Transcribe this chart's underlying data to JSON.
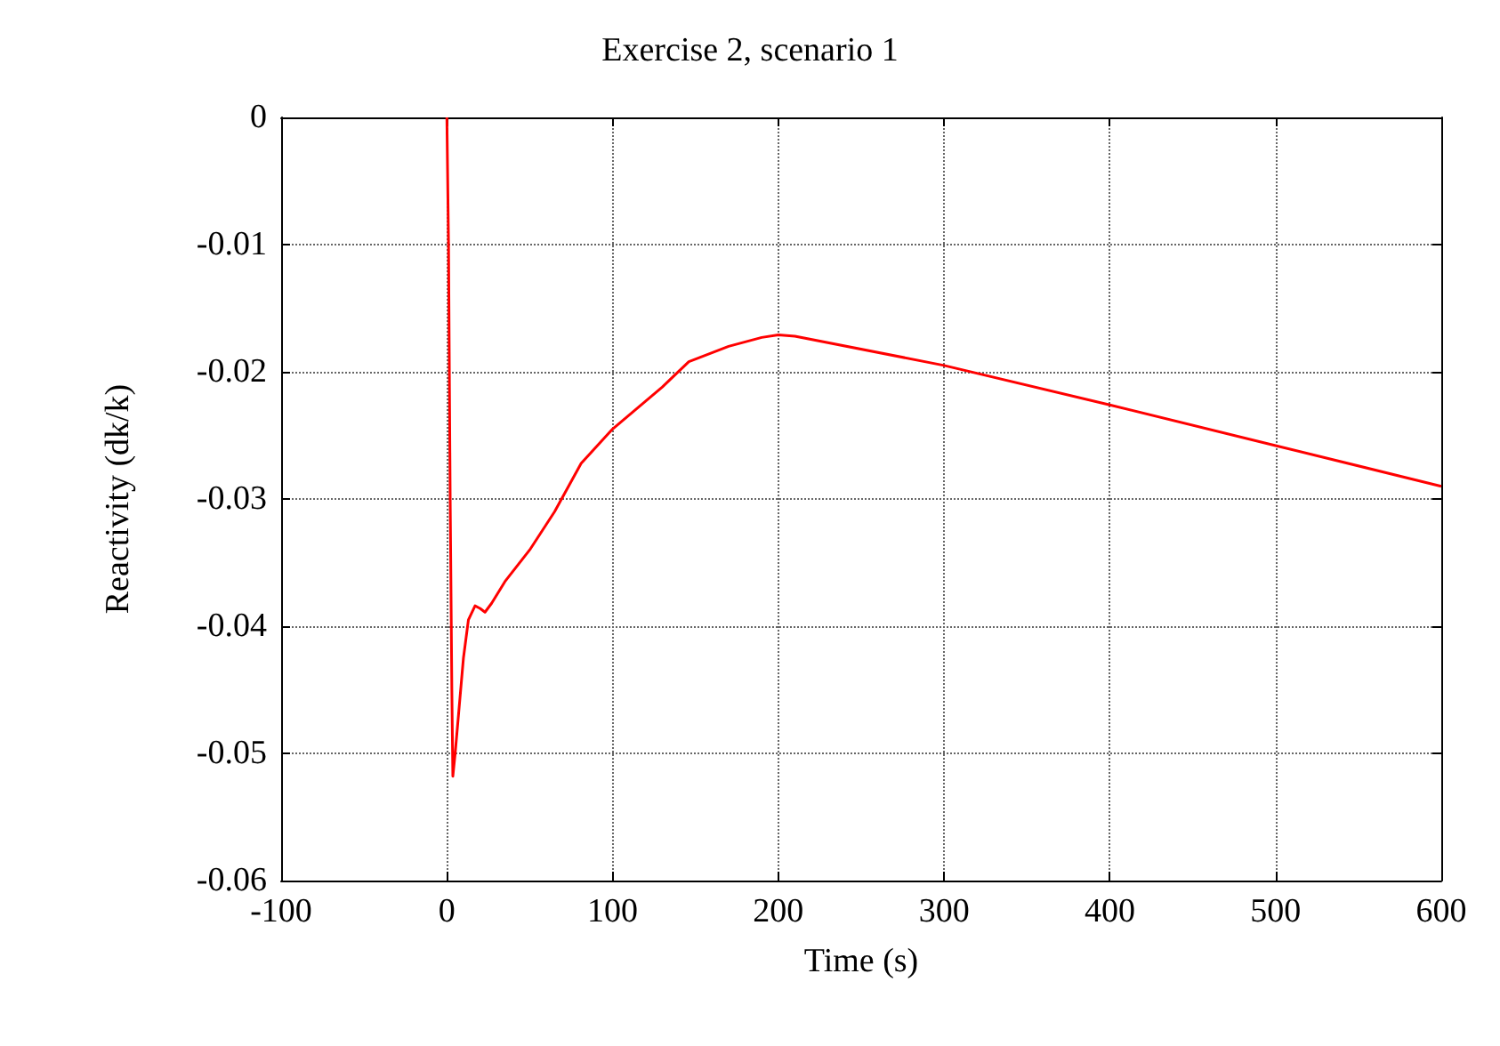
{
  "chart_data": {
    "type": "line",
    "title": "Exercise 2, scenario 1",
    "xlabel": "Time (s)",
    "ylabel": "Reactivity (dk/k)",
    "xlim": [
      -100,
      600
    ],
    "xticks": [
      -100,
      0,
      100,
      200,
      300,
      400,
      500,
      600
    ],
    "ylim": [
      -0.06,
      0
    ],
    "yticks": [
      -0.06,
      -0.05,
      -0.04,
      -0.03,
      -0.02,
      -0.01,
      0
    ],
    "grid": true,
    "marker": "none",
    "line_style": "solid",
    "series": [
      {
        "color": "#ff0000",
        "x": [
          0,
          1,
          2,
          3,
          3.6,
          5,
          7,
          10,
          13,
          17,
          20,
          23,
          27,
          35,
          50,
          65,
          81,
          100,
          130,
          146,
          170,
          190,
          200,
          210,
          300,
          400,
          500,
          600
        ],
        "values": [
          0,
          -0.01,
          -0.03,
          -0.045,
          -0.0518,
          -0.05,
          -0.047,
          -0.0425,
          -0.0395,
          -0.0384,
          -0.0386,
          -0.0389,
          -0.0382,
          -0.0365,
          -0.034,
          -0.031,
          -0.0272,
          -0.0245,
          -0.0212,
          -0.0192,
          -0.018,
          -0.0173,
          -0.0171,
          -0.0172,
          -0.0195,
          -0.0226,
          -0.0258,
          -0.029
        ]
      }
    ]
  }
}
